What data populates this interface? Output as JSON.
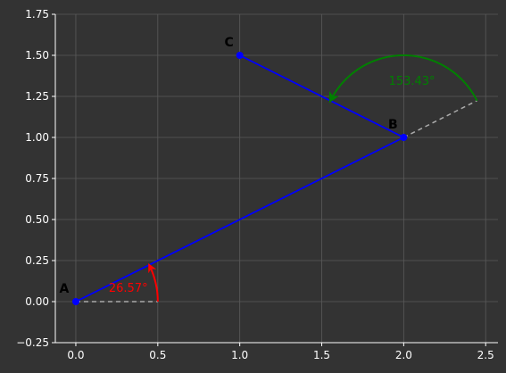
{
  "chart_data": {
    "type": "line",
    "title": "",
    "xlabel": "",
    "ylabel": "",
    "xlim": [
      -0.125,
      2.575
    ],
    "ylim": [
      -0.25,
      1.75
    ],
    "xticks": [
      0.0,
      0.5,
      1.0,
      1.5,
      2.0,
      2.5
    ],
    "xtick_labels": [
      "0.0",
      "0.5",
      "1.0",
      "1.5",
      "2.0",
      "2.5"
    ],
    "yticks": [
      -0.25,
      0.0,
      0.25,
      0.5,
      0.75,
      1.0,
      1.25,
      1.5,
      1.75
    ],
    "ytick_labels": [
      "−0.25",
      "0.00",
      "0.25",
      "0.50",
      "0.75",
      "1.00",
      "1.25",
      "1.50",
      "1.75"
    ],
    "grid": true,
    "points": [
      {
        "label": "A",
        "x": 0,
        "y": 0
      },
      {
        "label": "B",
        "x": 2,
        "y": 1
      },
      {
        "label": "C",
        "x": 1,
        "y": 1.5
      }
    ],
    "segments": [
      {
        "from": [
          0,
          0
        ],
        "to": [
          2,
          1
        ],
        "color": "#0000ff"
      },
      {
        "from": [
          2,
          1
        ],
        "to": [
          1,
          1.5
        ],
        "color": "#0000ff"
      }
    ],
    "reference_lines": [
      {
        "from": [
          0,
          0
        ],
        "to": [
          0.5,
          0
        ],
        "color": "#aaaaaa",
        "style": "dashed"
      },
      {
        "from": [
          2,
          1
        ],
        "to": [
          2.447,
          1.224
        ],
        "color": "#aaaaaa",
        "style": "dashed"
      }
    ],
    "angles": [
      {
        "label": "26.57°",
        "vertex": [
          0,
          0
        ],
        "radius": 0.5,
        "start_deg": 0,
        "end_deg": 26.57,
        "color": "#ff0000",
        "label_at": [
          0.32,
          0.06
        ]
      },
      {
        "label": "153.43°",
        "vertex": [
          2,
          1
        ],
        "radius": 0.5,
        "start_deg": 26.57,
        "end_deg": 153.43,
        "color": "#008000",
        "label_at": [
          2.05,
          1.32
        ]
      }
    ],
    "colors": {
      "background": "#333333",
      "axes": "#ffffff",
      "grid": "#5a5a5a",
      "segment": "#0000ff",
      "point": "#0000ff"
    }
  }
}
